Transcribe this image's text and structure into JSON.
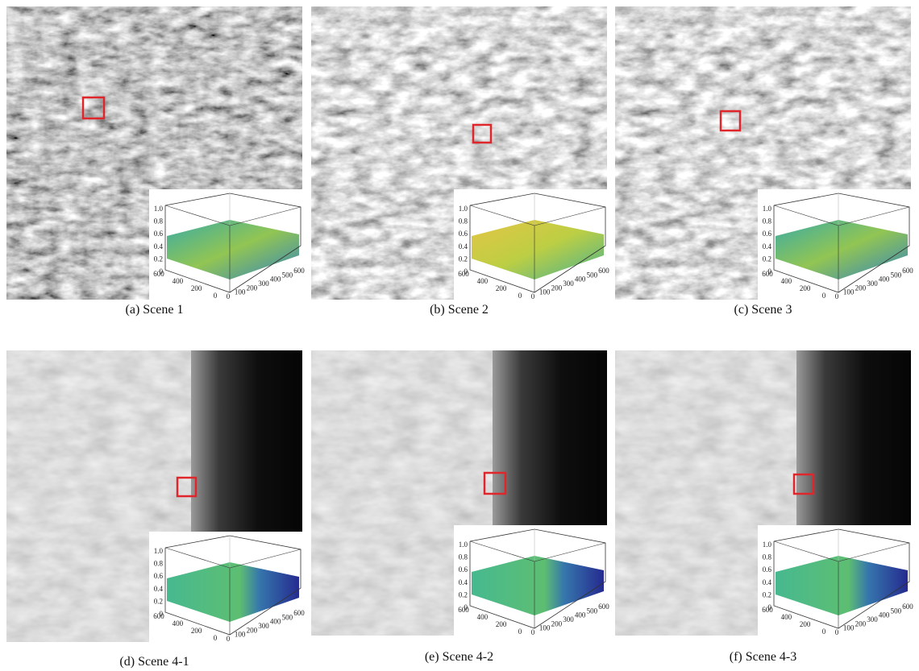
{
  "panels": [
    {
      "caption": "(a) Scene 1"
    },
    {
      "caption": "(b) Scene 2"
    },
    {
      "caption": "(c) Scene 3"
    },
    {
      "caption": "(d) Scene 4-1"
    },
    {
      "caption": "(e) Scene 4-2"
    },
    {
      "caption": "(f) Scene 4-3"
    }
  ],
  "inset_axes": {
    "z_ticks": [
      "1.0",
      "0.8",
      "0.6",
      "0.4",
      "0.2",
      "0"
    ],
    "y_ticks": [
      "600",
      "400",
      "200",
      "0"
    ],
    "x_ticks": [
      "0",
      "100",
      "200",
      "300",
      "400",
      "500",
      "600"
    ]
  }
}
